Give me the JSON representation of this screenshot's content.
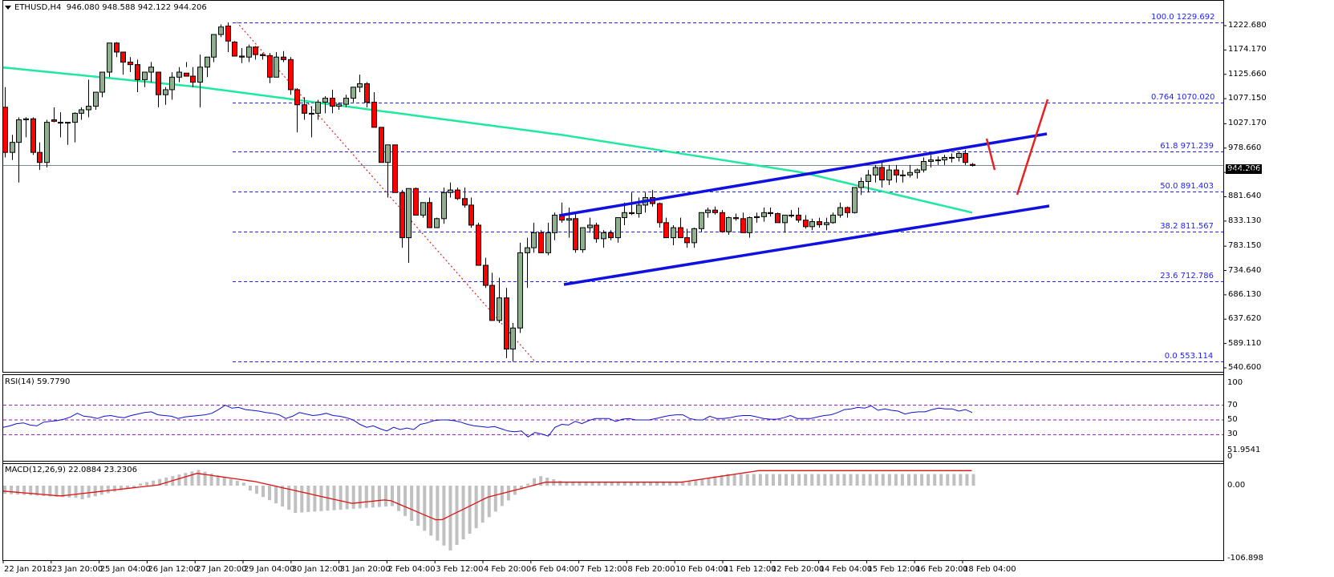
{
  "window": {
    "symbol_label": "ETHUSD,H4",
    "ohlc_header": "946.080 948.588 942.122 944.206",
    "current_price": "944.206"
  },
  "indicators": {
    "rsi_label": "RSI(14) 59.7790",
    "macd_label": "MACD(12,26,9) 22.0884 23.2306"
  },
  "price_axis": [
    "1222.680",
    "1174.170",
    "1125.660",
    "1077.150",
    "1027.170",
    "978.660",
    "930.150",
    "881.640",
    "833.130",
    "783.150",
    "734.640",
    "686.130",
    "637.620",
    "589.110",
    "540.600"
  ],
  "rsi_axis": [
    "100",
    "70",
    "50",
    "30",
    "0"
  ],
  "macd_axis": [
    "51.9541",
    "0.00",
    "-106.898"
  ],
  "time_axis": [
    "22 Jan 2018",
    "23 Jan 20:00",
    "25 Jan 04:00",
    "26 Jan 12:00",
    "27 Jan 20:00",
    "29 Jan 04:00",
    "30 Jan 12:00",
    "31 Jan 20:00",
    "2 Feb 04:00",
    "3 Feb 12:00",
    "4 Feb 20:00",
    "6 Feb 04:00",
    "7 Feb 12:00",
    "8 Feb 20:00",
    "10 Feb 04:00",
    "11 Feb 12:00",
    "12 Feb 20:00",
    "14 Feb 04:00",
    "15 Feb 12:00",
    "16 Feb 20:00",
    "18 Feb 04:00"
  ],
  "fibonacci": [
    {
      "level": "100.0",
      "price": "1229.692"
    },
    {
      "level": "0.764",
      "price": "1070.020"
    },
    {
      "level": "61.8",
      "price": "971.239"
    },
    {
      "level": "50.0",
      "price": "891.403"
    },
    {
      "level": "38.2",
      "price": "811.567"
    },
    {
      "level": "23.6",
      "price": "712.786"
    },
    {
      "level": "0.0",
      "price": "553.114"
    }
  ],
  "colors": {
    "bull": "#8fb08f",
    "bear": "#ff0000",
    "ma": "#20e8a0",
    "fib": "#2020ff",
    "channel": "#1010e0",
    "rsi": "#1010d0",
    "rsi_levels": "#9010c0",
    "macd_hist": "#c0c0c0",
    "macd_signal": "#e01010",
    "arrow": "#e82020",
    "bid_line": "#7a8a90"
  },
  "chart_data": {
    "type": "candlestick",
    "title": "ETHUSD,H4",
    "timeframe": "H4",
    "last_ohlc": {
      "open": 946.08,
      "high": 948.588,
      "low": 942.122,
      "close": 944.206
    },
    "ylim": [
      540.6,
      1229.692
    ],
    "x_range": [
      "22 Jan 2018",
      "18 Feb 04:00"
    ],
    "ohlc": [
      [
        1060,
        1100,
        960,
        970
      ],
      [
        970,
        1005,
        955,
        990
      ],
      [
        990,
        1040,
        910,
        1035
      ],
      [
        1035,
        1040,
        1000,
        1037
      ],
      [
        1037,
        1040,
        965,
        970
      ],
      [
        970,
        990,
        935,
        950
      ],
      [
        950,
        1035,
        940,
        1030
      ],
      [
        1035,
        1060,
        1030,
        1032
      ],
      [
        1030,
        1050,
        1000,
        1030
      ],
      [
        1030,
        1030,
        985,
        1030
      ],
      [
        1030,
        1050,
        990,
        1048
      ],
      [
        1048,
        1060,
        1035,
        1055
      ],
      [
        1055,
        1115,
        1040,
        1062
      ],
      [
        1062,
        1080,
        1055,
        1090
      ],
      [
        1090,
        1100,
        1080,
        1130
      ],
      [
        1130,
        1185,
        1120,
        1188
      ],
      [
        1188,
        1190,
        1160,
        1170
      ],
      [
        1170,
        1170,
        1125,
        1150
      ],
      [
        1150,
        1160,
        1130,
        1145
      ],
      [
        1145,
        1155,
        1090,
        1115
      ],
      [
        1115,
        1125,
        1100,
        1130
      ],
      [
        1130,
        1150,
        1110,
        1140
      ],
      [
        1130,
        1125,
        1060,
        1085
      ],
      [
        1085,
        1100,
        1065,
        1095
      ],
      [
        1095,
        1130,
        1075,
        1120
      ],
      [
        1120,
        1140,
        1110,
        1130
      ],
      [
        1128,
        1150,
        1140,
        1122
      ],
      [
        1122,
        1140,
        1100,
        1110
      ],
      [
        1110,
        1165,
        1060,
        1140
      ],
      [
        1140,
        1160,
        1120,
        1160
      ],
      [
        1160,
        1200,
        1150,
        1205
      ],
      [
        1205,
        1225,
        1200,
        1220
      ],
      [
        1222,
        1229,
        1170,
        1192
      ],
      [
        1190,
        1192,
        1170,
        1162
      ],
      [
        1162,
        1178,
        1148,
        1160
      ],
      [
        1160,
        1185,
        1150,
        1180
      ],
      [
        1180,
        1182,
        1155,
        1165
      ],
      [
        1165,
        1168,
        1155,
        1163
      ],
      [
        1163,
        1168,
        1108,
        1120
      ],
      [
        1120,
        1170,
        1120,
        1160
      ],
      [
        1160,
        1172,
        1150,
        1155
      ],
      [
        1155,
        1160,
        1085,
        1095
      ],
      [
        1095,
        1098,
        1010,
        1065
      ],
      [
        1065,
        1080,
        1035,
        1048
      ],
      [
        1048,
        1062,
        1000,
        1048
      ],
      [
        1048,
        1075,
        1035,
        1070
      ],
      [
        1070,
        1082,
        1048,
        1078
      ],
      [
        1078,
        1095,
        1048,
        1062
      ],
      [
        1062,
        1070,
        1055,
        1066
      ],
      [
        1066,
        1085,
        1060,
        1078
      ],
      [
        1078,
        1100,
        1070,
        1100
      ],
      [
        1100,
        1125,
        1090,
        1107
      ],
      [
        1107,
        1110,
        1060,
        1070
      ],
      [
        1070,
        1090,
        1020,
        1020
      ],
      [
        1020,
        1020,
        950,
        950
      ],
      [
        950,
        975,
        880,
        985
      ],
      [
        985,
        985,
        890,
        890
      ],
      [
        890,
        895,
        780,
        800
      ],
      [
        800,
        890,
        750,
        898
      ],
      [
        898,
        900,
        845,
        845
      ],
      [
        845,
        860,
        840,
        870
      ],
      [
        870,
        880,
        820,
        820
      ],
      [
        820,
        840,
        830,
        838
      ],
      [
        838,
        900,
        828,
        890
      ],
      [
        890,
        910,
        880,
        895
      ],
      [
        895,
        900,
        875,
        878
      ],
      [
        878,
        900,
        860,
        865
      ],
      [
        865,
        880,
        820,
        825
      ],
      [
        825,
        830,
        745,
        745
      ],
      [
        745,
        760,
        700,
        705
      ],
      [
        705,
        730,
        650,
        635
      ],
      [
        635,
        720,
        630,
        680
      ],
      [
        680,
        700,
        560,
        578
      ],
      [
        578,
        630,
        553,
        620
      ],
      [
        620,
        790,
        610,
        770
      ],
      [
        770,
        800,
        700,
        780
      ],
      [
        780,
        830,
        770,
        810
      ],
      [
        810,
        815,
        770,
        770
      ],
      [
        770,
        830,
        765,
        810
      ],
      [
        810,
        850,
        795,
        845
      ],
      [
        845,
        870,
        830,
        835
      ],
      [
        835,
        860,
        800,
        838
      ],
      [
        838,
        850,
        770,
        776
      ],
      [
        776,
        820,
        770,
        820
      ],
      [
        820,
        840,
        810,
        825
      ],
      [
        825,
        830,
        790,
        798
      ],
      [
        798,
        815,
        780,
        810
      ],
      [
        810,
        815,
        795,
        800
      ],
      [
        800,
        840,
        790,
        840
      ],
      [
        840,
        870,
        825,
        850
      ],
      [
        850,
        890,
        845,
        848
      ],
      [
        848,
        880,
        840,
        865
      ],
      [
        865,
        890,
        850,
        880
      ],
      [
        880,
        895,
        862,
        868
      ],
      [
        868,
        870,
        820,
        830
      ],
      [
        830,
        840,
        800,
        800
      ],
      [
        800,
        825,
        785,
        820
      ],
      [
        820,
        840,
        800,
        800
      ],
      [
        800,
        818,
        780,
        790
      ],
      [
        790,
        820,
        780,
        818
      ],
      [
        818,
        850,
        812,
        850
      ],
      [
        850,
        860,
        840,
        855
      ],
      [
        855,
        862,
        846,
        850
      ],
      [
        850,
        855,
        810,
        812
      ],
      [
        812,
        842,
        806,
        840
      ],
      [
        840,
        848,
        834,
        838
      ],
      [
        838,
        850,
        810,
        810
      ],
      [
        810,
        842,
        800,
        840
      ],
      [
        840,
        850,
        830,
        842
      ],
      [
        842,
        860,
        832,
        850
      ],
      [
        850,
        860,
        842,
        848
      ],
      [
        848,
        850,
        830,
        830
      ],
      [
        830,
        845,
        810,
        845
      ],
      [
        845,
        855,
        840,
        845
      ],
      [
        845,
        860,
        830,
        835
      ],
      [
        835,
        845,
        818,
        822
      ],
      [
        822,
        838,
        815,
        832
      ],
      [
        832,
        840,
        820,
        826
      ],
      [
        826,
        840,
        815,
        830
      ],
      [
        830,
        850,
        828,
        845
      ],
      [
        845,
        870,
        840,
        860
      ],
      [
        860,
        862,
        840,
        850
      ],
      [
        850,
        900,
        848,
        900
      ],
      [
        900,
        920,
        885,
        912
      ],
      [
        912,
        935,
        890,
        925
      ],
      [
        925,
        945,
        910,
        940
      ],
      [
        940,
        950,
        900,
        915
      ],
      [
        915,
        945,
        905,
        935
      ],
      [
        935,
        945,
        910,
        925
      ],
      [
        925,
        935,
        910,
        925
      ],
      [
        925,
        945,
        920,
        930
      ],
      [
        930,
        938,
        918,
        935
      ],
      [
        935,
        960,
        930,
        952
      ],
      [
        952,
        965,
        940,
        955
      ],
      [
        955,
        962,
        945,
        955
      ],
      [
        955,
        965,
        945,
        960
      ],
      [
        960,
        968,
        950,
        960
      ],
      [
        960,
        970,
        952,
        968
      ],
      [
        968,
        975,
        945,
        950
      ],
      [
        946,
        949,
        942,
        944
      ]
    ],
    "moving_average": {
      "description": "green SMA sloping from ~1140 (left) to ~850 (right)"
    },
    "trend_lines": [
      {
        "name": "channel-top",
        "from": [
          "7 Feb",
          850
        ],
        "to": [
          "17 Feb",
          1005
        ]
      },
      {
        "name": "channel-bottom",
        "from": [
          "7 Feb",
          712
        ],
        "to": [
          "17 Feb",
          905
        ]
      }
    ],
    "rsi": {
      "period": 14,
      "value": 59.779,
      "levels": [
        70,
        50,
        30
      ],
      "range": [
        0,
        100
      ]
    },
    "macd": {
      "fast": 12,
      "slow": 26,
      "signal": 9,
      "macd": 22.0884,
      "signal_value": 23.2306,
      "range": [
        -106.898,
        51.9541
      ]
    }
  }
}
